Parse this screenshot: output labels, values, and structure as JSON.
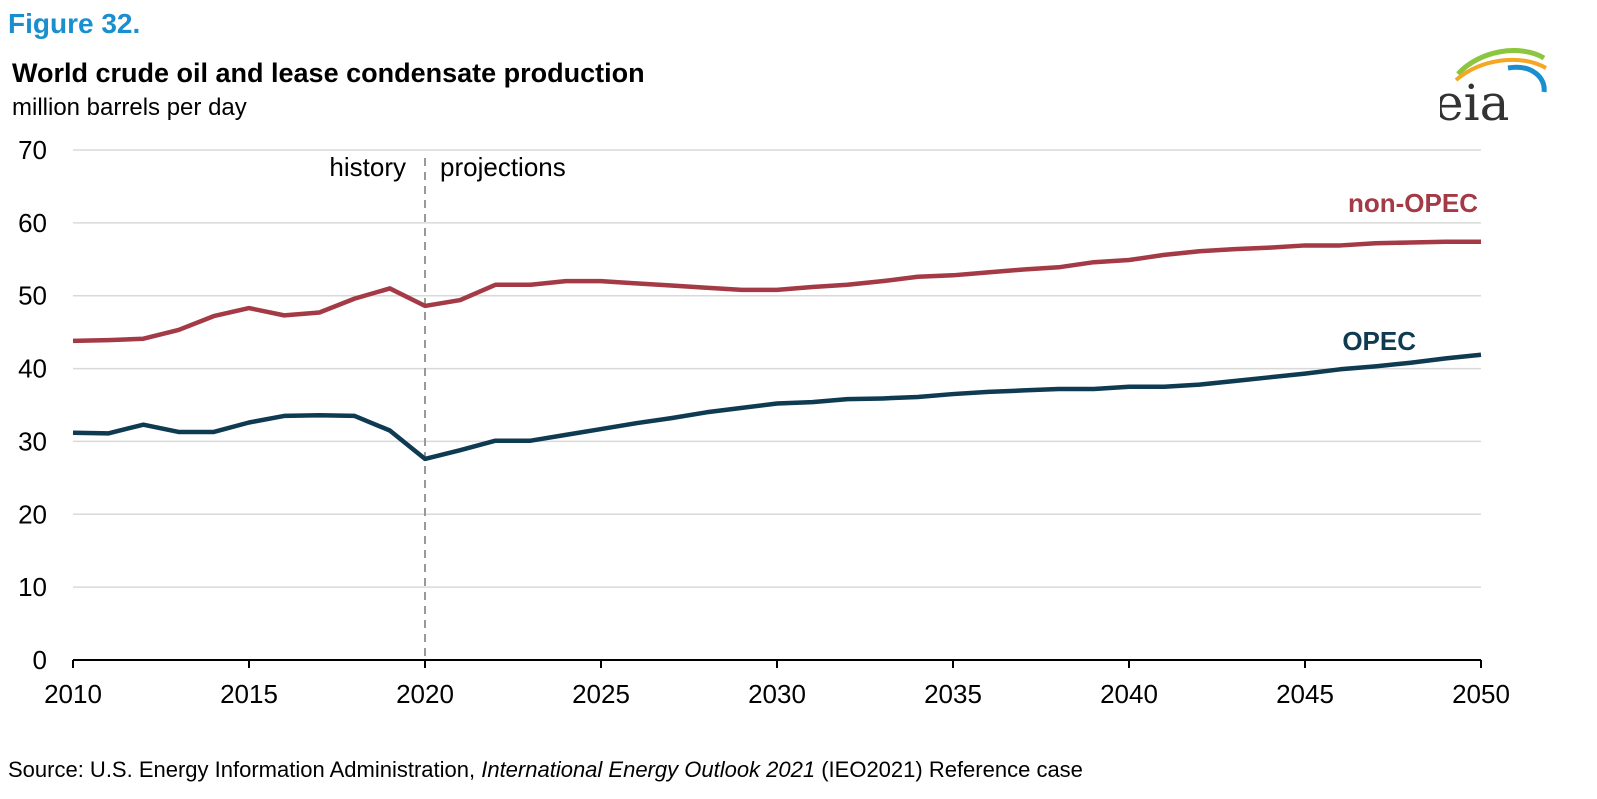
{
  "figure_label": "Figure 32.",
  "source": {
    "prefix": "Source:  U.S. Energy Information Administration, ",
    "italic": "International Energy Outlook 2021",
    "suffix": " (IEO2021) Reference case"
  },
  "logo": {
    "text": "eia",
    "icon": "eia-logo"
  },
  "colors": {
    "non_opec": "#a33a45",
    "opec": "#0e3a52",
    "grid": "#d9d9d9",
    "divider": "#999999",
    "figure_label": "#1a8fd0"
  },
  "chart_data": {
    "type": "line",
    "title": "World crude oil and lease condensate production",
    "subtitle": "million barrels per day",
    "xlabel": "",
    "ylabel": "",
    "xlim": [
      2010,
      2050
    ],
    "ylim": [
      0,
      70
    ],
    "x_ticks": [
      2010,
      2015,
      2020,
      2025,
      2030,
      2035,
      2040,
      2045,
      2050
    ],
    "y_ticks": [
      0,
      10,
      20,
      30,
      40,
      50,
      60,
      70
    ],
    "grid": "horizontal",
    "annotations": {
      "history": "history",
      "projections": "projections",
      "divider_x": 2020
    },
    "x": [
      2010,
      2011,
      2012,
      2013,
      2014,
      2015,
      2016,
      2017,
      2018,
      2019,
      2020,
      2021,
      2022,
      2023,
      2024,
      2025,
      2026,
      2027,
      2028,
      2029,
      2030,
      2031,
      2032,
      2033,
      2034,
      2035,
      2036,
      2037,
      2038,
      2039,
      2040,
      2041,
      2042,
      2043,
      2044,
      2045,
      2046,
      2047,
      2048,
      2049,
      2050
    ],
    "series": [
      {
        "name": "non-OPEC",
        "color": "#a33a45",
        "values": [
          43.8,
          43.9,
          44.1,
          45.3,
          47.2,
          48.3,
          47.3,
          47.7,
          49.6,
          51.0,
          48.6,
          49.4,
          51.5,
          51.5,
          52.0,
          52.0,
          51.7,
          51.4,
          51.1,
          50.8,
          50.8,
          51.2,
          51.5,
          52.0,
          52.6,
          52.8,
          53.2,
          53.6,
          53.9,
          54.6,
          54.9,
          55.6,
          56.1,
          56.4,
          56.6,
          56.9,
          56.9,
          57.2,
          57.3,
          57.4,
          57.4
        ]
      },
      {
        "name": "OPEC",
        "color": "#0e3a52",
        "values": [
          31.2,
          31.1,
          32.3,
          31.3,
          31.3,
          32.6,
          33.5,
          33.6,
          33.5,
          31.5,
          27.6,
          28.8,
          30.1,
          30.1,
          30.9,
          31.7,
          32.5,
          33.2,
          34.0,
          34.6,
          35.2,
          35.4,
          35.8,
          35.9,
          36.1,
          36.5,
          36.8,
          37.0,
          37.2,
          37.2,
          37.5,
          37.5,
          37.8,
          38.3,
          38.8,
          39.3,
          39.9,
          40.3,
          40.8,
          41.4,
          41.9
        ]
      }
    ]
  }
}
